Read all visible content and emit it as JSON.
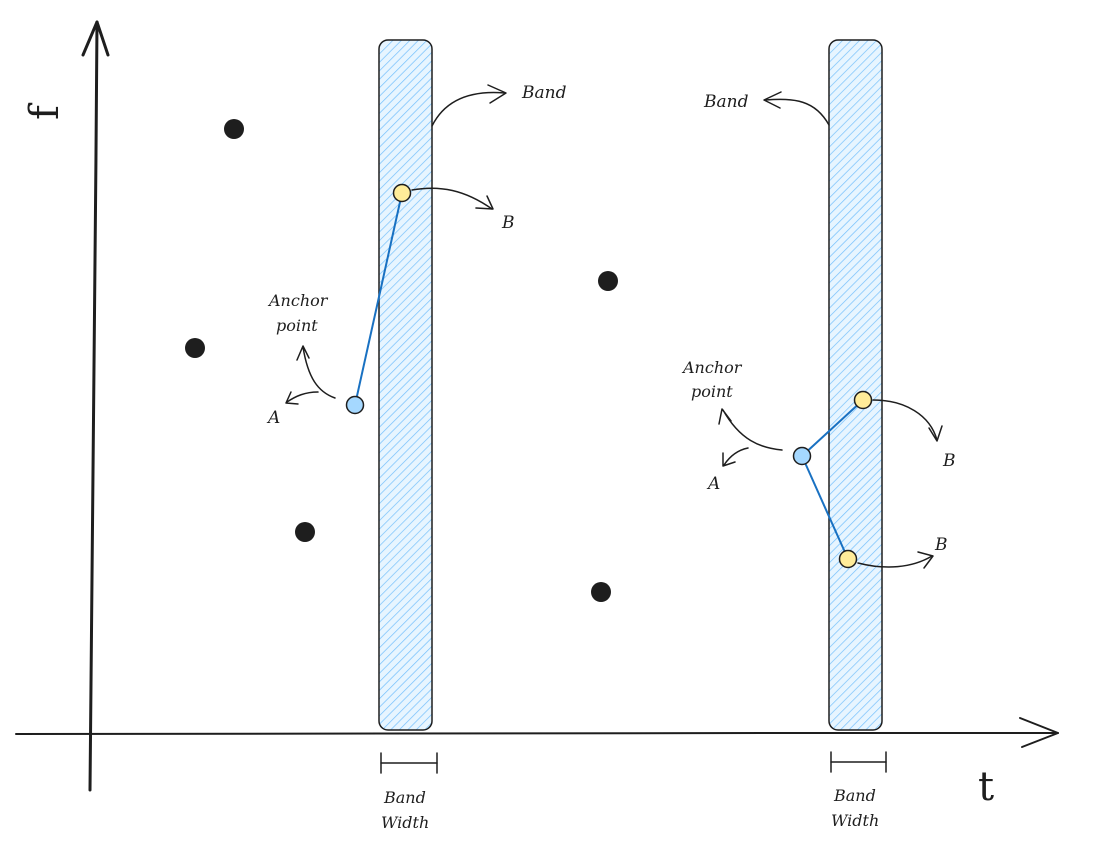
{
  "axes": {
    "y_label": "f",
    "x_label": "t"
  },
  "colors": {
    "ink": "#1e1e1e",
    "band_fill": "#a5d8ff",
    "band_hatch": "#74c0fc",
    "anchor_fill": "#a5d8ff",
    "anchor_stroke": "#1971c2",
    "target_fill": "#ffec99",
    "link_line": "#1971c2"
  },
  "left_group": {
    "band_label": "Band",
    "band_width_label_line1": "Band",
    "band_width_label_line2": "Width",
    "anchor_label_line1": "Anchor",
    "anchor_label_line2": "point",
    "anchor_letter": "A",
    "target_label": "B"
  },
  "right_group": {
    "band_label": "Band",
    "band_width_label_line1": "Band",
    "band_width_label_line2": "Width",
    "anchor_label_line1": "Anchor",
    "anchor_label_line2": "point",
    "anchor_letter": "A",
    "target_label_top": "B",
    "target_label_bottom": "B"
  }
}
